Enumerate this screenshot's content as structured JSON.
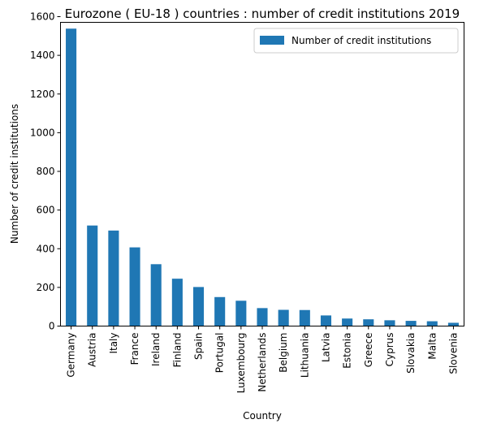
{
  "chart_data": {
    "type": "bar",
    "title": "Eurozone ( EU-18 ) countries : number of credit institutions 2019",
    "xlabel": "Country",
    "ylabel": "Number of credit institutions",
    "ylim": [
      0,
      1600
    ],
    "yticks": [
      0,
      200,
      400,
      600,
      800,
      1000,
      1200,
      1400,
      1600
    ],
    "grid": false,
    "legend_position": "upper-right",
    "bar_color": "#1f77b4",
    "categories": [
      "Germany",
      "Austria",
      "Italy",
      "France",
      "Ireland",
      "Finland",
      "Spain",
      "Portugal",
      "Luxembourg",
      "Netherlands",
      "Belgium",
      "Lithuania",
      "Latvia",
      "Estonia",
      "Greece",
      "Cyprus",
      "Slovakia",
      "Malta",
      "Slovenia"
    ],
    "series": [
      {
        "name": "Number of credit institutions",
        "values": [
          1538,
          520,
          494,
          407,
          320,
          245,
          202,
          150,
          131,
          93,
          84,
          83,
          55,
          39,
          35,
          30,
          27,
          25,
          17
        ]
      }
    ]
  }
}
